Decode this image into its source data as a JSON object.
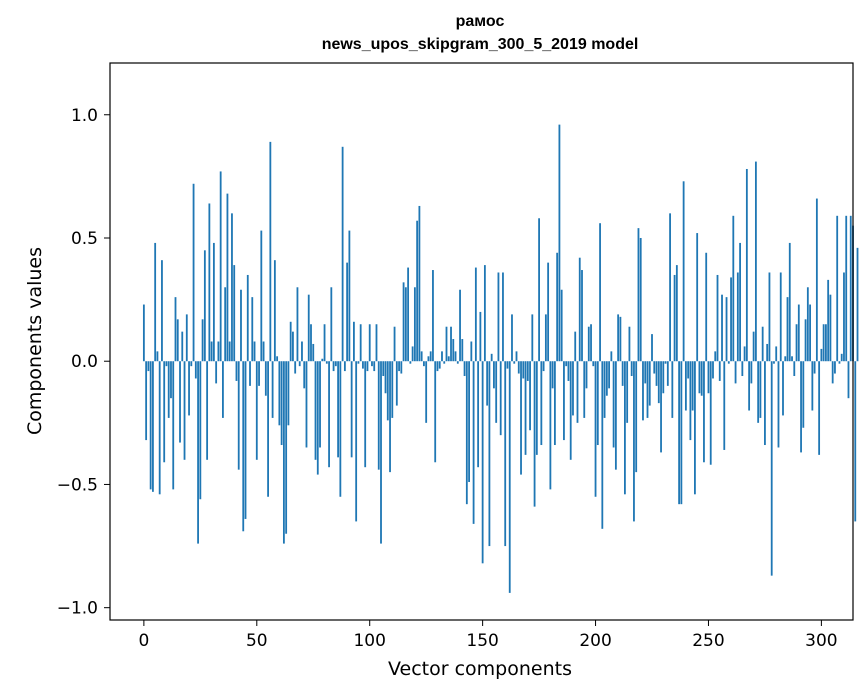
{
  "chart_data": {
    "type": "bar",
    "title": "рамос",
    "subtitle": "news_upos_skipgram_300_5_2019 model",
    "xlabel": "Vector components",
    "ylabel": "Components values",
    "xlim": [
      -15,
      314
    ],
    "ylim": [
      -1.05,
      1.21
    ],
    "xticks": [
      0,
      50,
      100,
      150,
      200,
      250,
      300
    ],
    "yticks": [
      -1.0,
      -0.5,
      0.0,
      0.5,
      1.0
    ],
    "xtick_labels": [
      "0",
      "50",
      "100",
      "150",
      "200",
      "250",
      "300"
    ],
    "ytick_labels": [
      "−1.0",
      "−0.5",
      "0.0",
      "0.5",
      "1.0"
    ],
    "grid": false,
    "bar_color": "#1f77b4",
    "x_start": 0,
    "values": [
      0.23,
      -0.32,
      -0.04,
      -0.52,
      -0.53,
      0.48,
      0.04,
      -0.54,
      0.41,
      -0.41,
      -0.02,
      -0.23,
      -0.15,
      -0.52,
      0.26,
      0.17,
      -0.33,
      0.12,
      -0.4,
      0.19,
      -0.22,
      -0.02,
      0.72,
      -0.07,
      -0.74,
      -0.56,
      0.17,
      0.45,
      -0.4,
      0.64,
      0.08,
      0.48,
      -0.09,
      0.08,
      0.77,
      -0.23,
      0.3,
      0.68,
      0.08,
      0.6,
      0.39,
      -0.08,
      -0.44,
      0.29,
      -0.69,
      -0.64,
      0.35,
      -0.1,
      0.26,
      0.08,
      -0.4,
      -0.1,
      0.53,
      0.08,
      -0.14,
      -0.55,
      0.89,
      -0.23,
      0.41,
      0.02,
      -0.26,
      -0.34,
      -0.74,
      -0.7,
      -0.26,
      0.16,
      0.12,
      -0.05,
      0.3,
      -0.02,
      0.08,
      -0.11,
      -0.35,
      0.27,
      0.15,
      0.07,
      -0.4,
      -0.46,
      -0.35,
      0.01,
      0.15,
      -0.01,
      -0.43,
      0.3,
      -0.04,
      -0.02,
      -0.39,
      -0.55,
      0.87,
      -0.04,
      0.4,
      0.53,
      -0.39,
      0.16,
      -0.65,
      -0.01,
      0.15,
      -0.03,
      -0.43,
      -0.04,
      0.15,
      -0.02,
      -0.04,
      0.15,
      -0.44,
      -0.74,
      -0.06,
      -0.13,
      -0.24,
      -0.45,
      -0.23,
      0.14,
      -0.18,
      -0.04,
      -0.05,
      0.32,
      0.3,
      0.38,
      -0.01,
      0.06,
      0.3,
      0.57,
      0.63,
      0.04,
      -0.02,
      -0.25,
      0.02,
      0.04,
      0.37,
      -0.41,
      -0.04,
      -0.03,
      0.04,
      -0.01,
      0.14,
      0.02,
      0.14,
      0.09,
      0.04,
      -0.01,
      0.29,
      0.09,
      -0.06,
      -0.58,
      -0.49,
      0.08,
      -0.66,
      0.38,
      -0.43,
      0.2,
      -0.82,
      0.39,
      -0.18,
      -0.75,
      0.03,
      -0.11,
      -0.25,
      0.36,
      -0.3,
      0.36,
      -0.75,
      -0.03,
      -0.94,
      0.19,
      -0.01,
      0.04,
      -0.05,
      -0.46,
      -0.07,
      -0.38,
      -0.08,
      -0.28,
      0.19,
      -0.59,
      -0.38,
      0.58,
      -0.34,
      -0.04,
      0.19,
      0.4,
      -0.52,
      -0.11,
      -0.34,
      0.44,
      0.96,
      0.29,
      -0.32,
      -0.02,
      -0.08,
      -0.4,
      -0.22,
      0.12,
      -0.25,
      0.42,
      0.37,
      -0.23,
      -0.11,
      0.14,
      0.15,
      -0.02,
      -0.55,
      -0.34,
      0.56,
      -0.68,
      -0.23,
      -0.14,
      -0.11,
      0.04,
      -0.35,
      -0.44,
      0.19,
      0.18,
      -0.1,
      -0.54,
      -0.25,
      0.14,
      -0.06,
      -0.65,
      -0.45,
      0.54,
      0.5,
      -0.24,
      -0.09,
      -0.23,
      -0.18,
      0.11,
      -0.05,
      -0.1,
      -0.17,
      -0.37,
      -0.13,
      -0.01,
      -0.1,
      0.6,
      -0.23,
      0.35,
      0.39,
      -0.58,
      -0.58,
      0.73,
      -0.2,
      -0.07,
      -0.32,
      -0.2,
      -0.54,
      0.52,
      -0.13,
      -0.14,
      -0.41,
      0.44,
      -0.13,
      -0.42,
      -0.07,
      0.04,
      0.35,
      -0.08,
      0.27,
      -0.36,
      0.26,
      -0.01,
      0.34,
      0.59,
      -0.09,
      0.36,
      0.48,
      -0.06,
      0.06,
      0.78,
      -0.2,
      -0.09,
      0.12,
      0.81,
      -0.25,
      -0.23,
      0.14,
      -0.34,
      0.07,
      0.36,
      -0.87,
      -0.01,
      0.06,
      -0.35,
      0.36,
      -0.22,
      0.02,
      0.26,
      0.48,
      0.02,
      -0.06,
      0.15,
      0.23,
      -0.37,
      -0.27,
      0.17,
      0.3,
      0.23,
      -0.2,
      -0.05,
      0.66,
      -0.38,
      0.05,
      0.15,
      0.15,
      0.33,
      0.27,
      -0.09,
      -0.05,
      0.59,
      -0.01,
      0.03,
      0.36,
      0.59,
      -0.15,
      0.59,
      0.55,
      -0.65,
      0.46
    ]
  }
}
